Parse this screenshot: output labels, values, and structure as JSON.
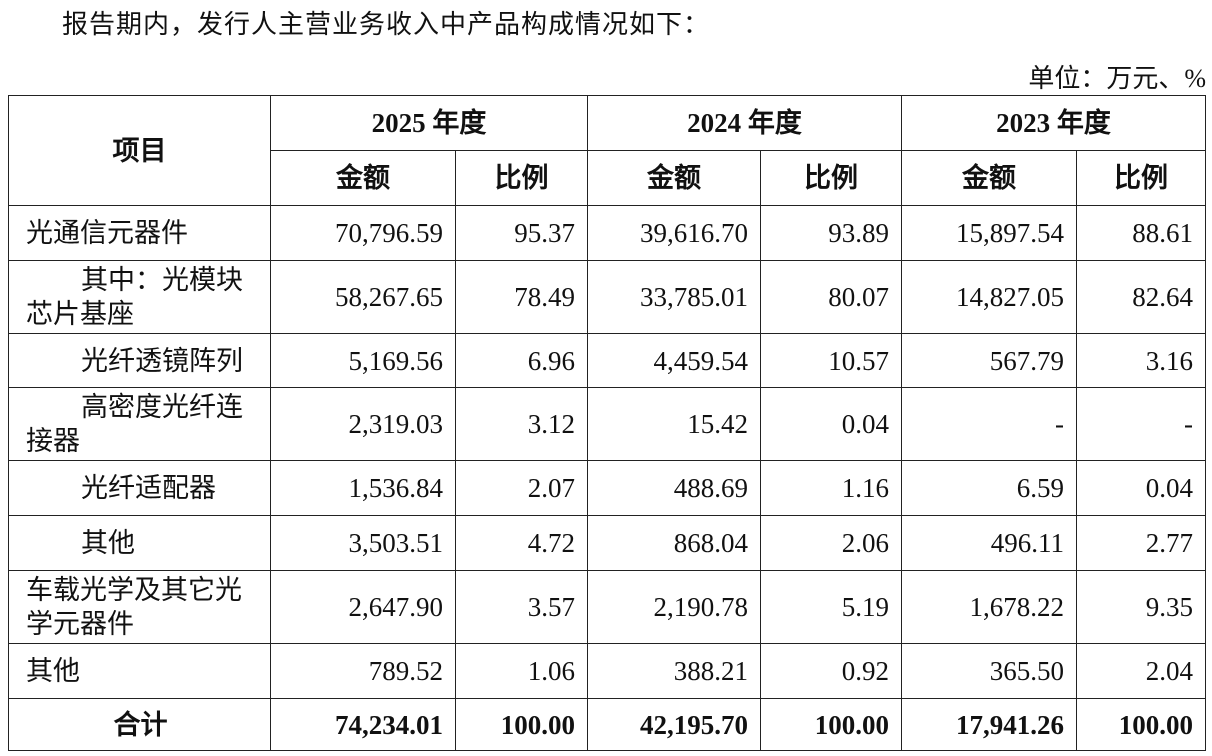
{
  "intro": "报告期内，发行人主营业务收入中产品构成情况如下：",
  "unit": "单位：万元、%",
  "table": {
    "header": {
      "item": "项目",
      "years": [
        "2025 年度",
        "2024 年度",
        "2023 年度"
      ],
      "sub": [
        "金额",
        "比例"
      ]
    },
    "rows": [
      [
        "光通信元器件",
        "70,796.59",
        "95.37",
        "39,616.70",
        "93.89",
        "15,897.54",
        "88.61"
      ],
      [
        "其中：光模块芯片基座",
        "58,267.65",
        "78.49",
        "33,785.01",
        "80.07",
        "14,827.05",
        "82.64"
      ],
      [
        "光纤透镜阵列",
        "5,169.56",
        "6.96",
        "4,459.54",
        "10.57",
        "567.79",
        "3.16"
      ],
      [
        "高密度光纤连接器",
        "2,319.03",
        "3.12",
        "15.42",
        "0.04",
        "-",
        "-"
      ],
      [
        "光纤适配器",
        "1,536.84",
        "2.07",
        "488.69",
        "1.16",
        "6.59",
        "0.04"
      ],
      [
        "其他",
        "3,503.51",
        "4.72",
        "868.04",
        "2.06",
        "496.11",
        "2.77"
      ],
      [
        "车载光学及其它光学元器件",
        "2,647.90",
        "3.57",
        "2,190.78",
        "5.19",
        "1,678.22",
        "9.35"
      ],
      [
        "其他",
        "789.52",
        "1.06",
        "388.21",
        "0.92",
        "365.50",
        "2.04"
      ],
      [
        "合计",
        "74,234.01",
        "100.00",
        "42,195.70",
        "100.00",
        "17,941.26",
        "100.00"
      ]
    ]
  }
}
